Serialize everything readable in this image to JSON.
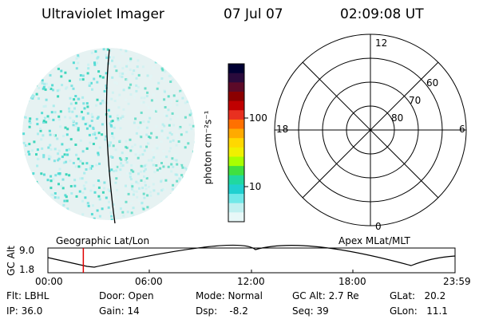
{
  "header": {
    "title": "Ultraviolet Imager",
    "date": "07 Jul 07",
    "time": "02:09:08 UT"
  },
  "colorbar": {
    "unit_label": "photon cm⁻²s⁻¹",
    "ticks": [
      "100",
      "10"
    ],
    "colors": [
      "#000033",
      "#2a0a3c",
      "#5c0a28",
      "#8b0000",
      "#c00000",
      "#e83020",
      "#ff7000",
      "#ffaa00",
      "#ffd800",
      "#f0f000",
      "#a8ff00",
      "#40e040",
      "#20d8a0",
      "#20d0d0",
      "#70e8e8",
      "#c0f0f0",
      "#e8f8f8"
    ]
  },
  "polar_plot": {
    "mlt_labels": [
      "12",
      "18",
      "6",
      "0"
    ],
    "lat_labels": [
      "60",
      "70",
      "80"
    ]
  },
  "labels": {
    "left_map": "Geographic Lat/Lon",
    "right_map": "Apex MLat/MLT"
  },
  "gc_alt_plot": {
    "axis_label": "GC Alt",
    "y_ticks": [
      "9.0",
      "1.8"
    ],
    "x_ticks": [
      "00:00",
      "06:00",
      "12:00",
      "18:00",
      "23:59"
    ],
    "current_time_marker_fraction": 0.087
  },
  "info": {
    "flt": "Flt: LBHL",
    "ip": "IP: 36.0",
    "door": "Door: Open",
    "gain": "Gain: 14",
    "mode": "Mode: Normal",
    "dsp": "Dsp:    -8.2",
    "gc_alt": "GC Alt: 2.7 Re",
    "seq": "Seq: 39",
    "glat": "GLat:   20.2",
    "glon": "GLon:   11.1"
  }
}
